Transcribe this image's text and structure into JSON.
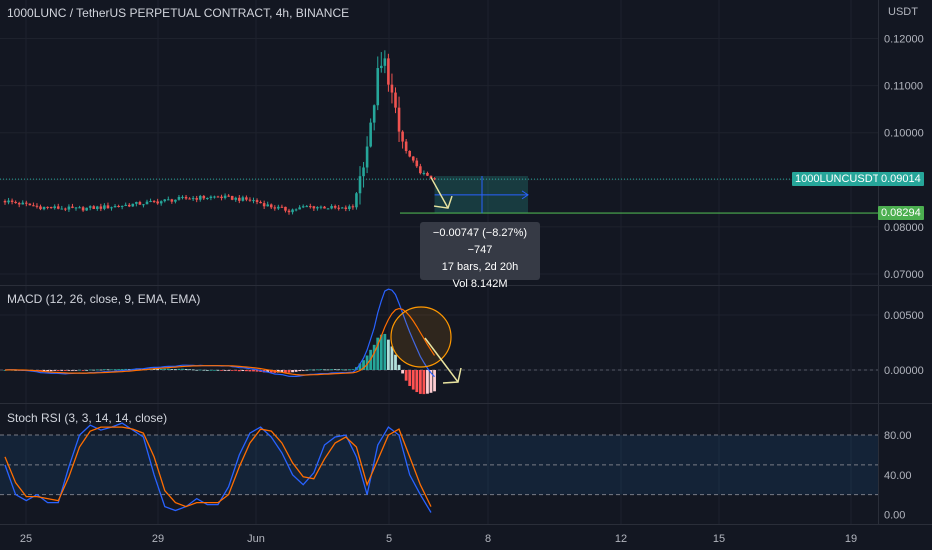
{
  "header": {
    "title": "1000LUNC / TetherUS PERPETUAL CONTRACT, 4h, BINANCE",
    "currency": "USDT"
  },
  "price_tags": {
    "symbol": "1000LUNCUSDT.P",
    "last_price": "0.09014",
    "target_price": "0.08294"
  },
  "tooltip": {
    "change": "−0.00747 (−8.27%) −747",
    "bars": "17 bars, 2d 20h",
    "volume": "Vol 8.142M"
  },
  "macd": {
    "label": "MACD (12, 26, close, 9, EMA, EMA)"
  },
  "stoch": {
    "label": "Stoch RSI (3, 3, 14, 14, close)"
  },
  "colors": {
    "background": "#131722",
    "up": "#26a69a",
    "down": "#ef5350",
    "macd_line": "#2962ff",
    "signal_line": "#ff6d00",
    "hist_up_strong": "#26a69a",
    "hist_up_weak": "#b2dfdb",
    "hist_down_strong": "#ff5252",
    "hist_down_weak": "#ffcdd2",
    "target_line": "#4caf50",
    "annotation": "#e8e3a0",
    "circle": "#ff9800"
  },
  "chart_data": [
    {
      "type": "candlestick",
      "x_axis": {
        "type": "date",
        "ticks": [
          "25",
          "29",
          "Jun",
          "5",
          "8",
          "12",
          "15",
          "19"
        ]
      },
      "y_axis": {
        "unit": "USDT",
        "range": [
          0.068,
          0.121
        ],
        "ticks": [
          "0.12000",
          "0.11000",
          "0.10000",
          "0.09000",
          "0.08000",
          "0.07000"
        ]
      },
      "last_price": 0.09014,
      "target_price": 0.08294,
      "price_trend": [
        [
          0,
          0.0855
        ],
        [
          10,
          0.0842
        ],
        [
          20,
          0.0838
        ],
        [
          30,
          0.0843
        ],
        [
          40,
          0.0851
        ],
        [
          50,
          0.086
        ],
        [
          60,
          0.0864
        ],
        [
          70,
          0.0856
        ],
        [
          75,
          0.0843
        ],
        [
          80,
          0.0835
        ],
        [
          85,
          0.0843
        ],
        [
          90,
          0.0842
        ],
        [
          95,
          0.0838
        ],
        [
          98,
          0.0842
        ],
        [
          100,
          0.0905
        ],
        [
          103,
          0.101
        ],
        [
          105,
          0.1125
        ],
        [
          107,
          0.115
        ],
        [
          109,
          0.108
        ],
        [
          111,
          0.1
        ],
        [
          113,
          0.096
        ],
        [
          116,
          0.0925
        ],
        [
          119,
          0.0905
        ],
        [
          121,
          0.0905
        ]
      ],
      "projection": {
        "from": 0.0908,
        "to": 0.0829
      }
    },
    {
      "type": "macd",
      "y_axis": {
        "ticks": [
          "0.00500",
          "0.00000"
        ]
      },
      "params": "12, 26, close, 9, EMA, EMA"
    },
    {
      "type": "line",
      "name": "Stoch RSI",
      "y_axis": {
        "range": [
          0,
          100
        ],
        "ticks": [
          "80.00",
          "40.00",
          "0.00"
        ]
      },
      "bands": [
        20,
        80
      ],
      "series": [
        {
          "name": "K",
          "values": [
            [
              0,
              50
            ],
            [
              3,
              20
            ],
            [
              6,
              14
            ],
            [
              9,
              20
            ],
            [
              12,
              12
            ],
            [
              15,
              12
            ],
            [
              18,
              48
            ],
            [
              21,
              80
            ],
            [
              24,
              90
            ],
            [
              27,
              85
            ],
            [
              30,
              88
            ],
            [
              33,
              92
            ],
            [
              36,
              85
            ],
            [
              39,
              78
            ],
            [
              42,
              40
            ],
            [
              45,
              8
            ],
            [
              48,
              4
            ],
            [
              51,
              8
            ],
            [
              54,
              16
            ],
            [
              57,
              10
            ],
            [
              60,
              10
            ],
            [
              63,
              28
            ],
            [
              66,
              60
            ],
            [
              69,
              82
            ],
            [
              72,
              88
            ],
            [
              75,
              78
            ],
            [
              78,
              62
            ],
            [
              81,
              40
            ],
            [
              84,
              30
            ],
            [
              87,
              42
            ],
            [
              90,
              70
            ],
            [
              93,
              78
            ],
            [
              96,
              80
            ],
            [
              99,
              58
            ],
            [
              102,
              20
            ],
            [
              105,
              70
            ],
            [
              108,
              88
            ],
            [
              111,
              80
            ],
            [
              114,
              40
            ],
            [
              117,
              20
            ],
            [
              120,
              2
            ]
          ]
        },
        {
          "name": "D",
          "values": [
            [
              0,
              58
            ],
            [
              3,
              32
            ],
            [
              6,
              18
            ],
            [
              9,
              18
            ],
            [
              12,
              16
            ],
            [
              15,
              14
            ],
            [
              18,
              38
            ],
            [
              21,
              68
            ],
            [
              24,
              84
            ],
            [
              27,
              88
            ],
            [
              30,
              88
            ],
            [
              33,
              88
            ],
            [
              36,
              86
            ],
            [
              39,
              82
            ],
            [
              42,
              58
            ],
            [
              45,
              24
            ],
            [
              48,
              12
            ],
            [
              51,
              8
            ],
            [
              54,
              12
            ],
            [
              57,
              12
            ],
            [
              60,
              12
            ],
            [
              63,
              20
            ],
            [
              66,
              48
            ],
            [
              69,
              72
            ],
            [
              72,
              86
            ],
            [
              75,
              84
            ],
            [
              78,
              72
            ],
            [
              81,
              52
            ],
            [
              84,
              38
            ],
            [
              87,
              36
            ],
            [
              90,
              56
            ],
            [
              93,
              72
            ],
            [
              96,
              78
            ],
            [
              99,
              68
            ],
            [
              102,
              30
            ],
            [
              105,
              55
            ],
            [
              108,
              80
            ],
            [
              111,
              86
            ],
            [
              114,
              58
            ],
            [
              117,
              30
            ],
            [
              120,
              8
            ]
          ]
        }
      ]
    }
  ]
}
